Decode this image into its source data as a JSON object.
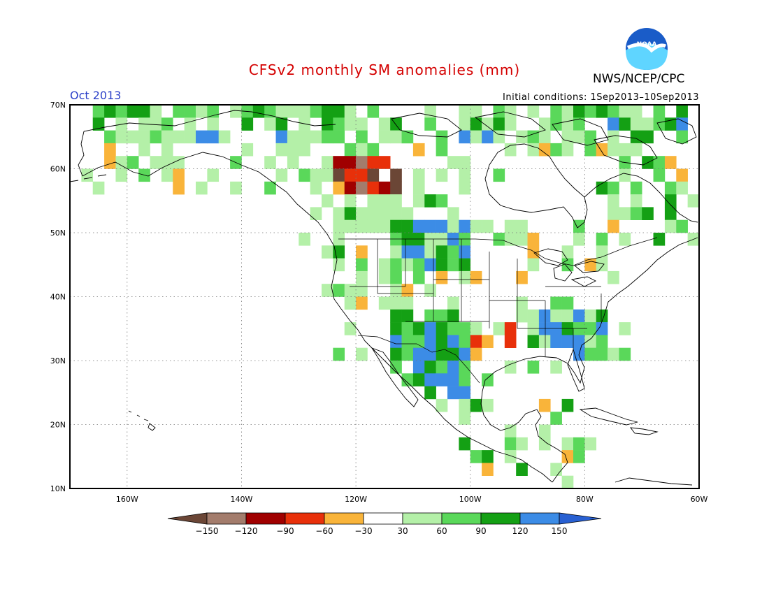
{
  "title": "CFSv2 monthly SM anomalies (mm)",
  "period": "Oct 2013",
  "initial_conditions": "Initial conditions: 1Sep2013–10Sep2013",
  "agency": "NWS/NCEP/CPC",
  "logo_text": "NOAA",
  "map": {
    "lon_range": [
      -170,
      -60
    ],
    "lat_range": [
      10,
      70
    ],
    "lon_ticks": [
      "160W",
      "140W",
      "120W",
      "100W",
      "80W",
      "60W"
    ],
    "lat_ticks": [
      "10N",
      "20N",
      "30N",
      "40N",
      "50N",
      "60N",
      "70N"
    ],
    "gridlines": "dotted"
  },
  "colorbar": {
    "labels": [
      "−150",
      "−120",
      "−90",
      "−60",
      "−30",
      "30",
      "60",
      "90",
      "120",
      "150"
    ],
    "colors": [
      "#6b4636",
      "#a37c6c",
      "#a00000",
      "#e8300a",
      "#f9b43a",
      "#ffffff",
      "#b4f0a8",
      "#5ad85a",
      "#14a014",
      "#3c8ce6",
      "#2860d2"
    ]
  },
  "colors": {
    "title": "#d40000",
    "period": "#2a3fc8",
    "frame": "#000000"
  },
  "anomaly_regions": [
    {
      "region": "Southwest US / NW Mexico",
      "category": "120 to 150"
    },
    {
      "region": "Southeast US",
      "category": "120 to 150"
    },
    {
      "region": "Canadian prairies",
      "category": "90 to 120"
    },
    {
      "region": "Alberta / British Columbia",
      "category": "-120 to -90"
    },
    {
      "region": "Texas / Oklahoma",
      "category": "-60 to -30"
    }
  ]
}
